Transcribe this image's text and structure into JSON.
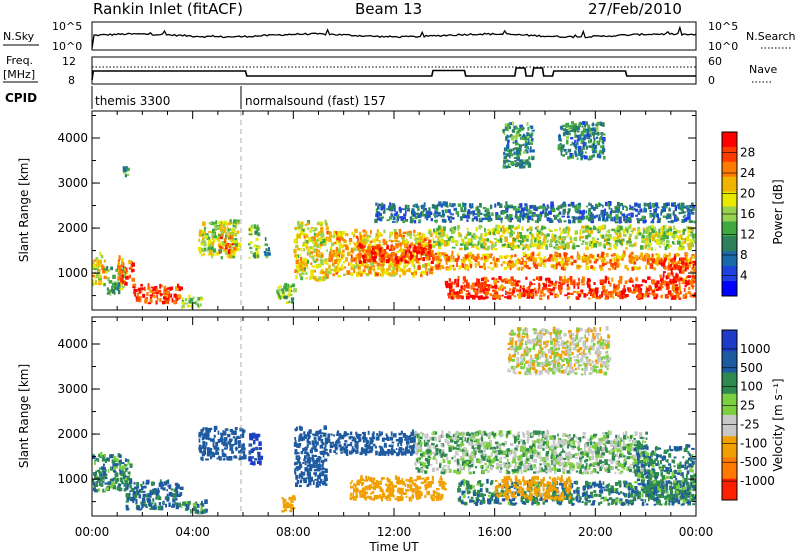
{
  "header": {
    "station": "Rankin Inlet (fitACF)",
    "beam": "Beam 13",
    "date": "27/Feb/2010"
  },
  "noise_panel": {
    "left_label": "N.Sky",
    "right_label": "N.Search",
    "left_ticks": [
      "10^5",
      "10^0"
    ],
    "right_ticks": [
      "10^5",
      "10^0"
    ]
  },
  "freq_panel": {
    "left_label_1": "Freq.",
    "left_label_2": "[MHz]",
    "left_ticks": [
      "12",
      "8"
    ],
    "right_label": "Nave",
    "right_ticks": [
      "60",
      "0"
    ]
  },
  "cpid_panel": {
    "label": "CPID",
    "modes": [
      {
        "name": "themis 3300",
        "start_hour": 0,
        "end_hour": 6
      },
      {
        "name": "normalsound (fast) 157",
        "start_hour": 6,
        "end_hour": 24
      }
    ]
  },
  "axes": {
    "ylabel": "Slant Range [km]",
    "xlabel": "Time UT",
    "y_ticks": [
      "4000",
      "3000",
      "2000",
      "1000"
    ],
    "x_ticks": [
      "00:00",
      "04:00",
      "08:00",
      "12:00",
      "16:00",
      "20:00",
      "00:00"
    ],
    "xlim_hours": [
      0,
      24
    ],
    "ylim_km": [
      180,
      4600
    ]
  },
  "power_colorbar": {
    "label": "Power [dB]",
    "ticks": [
      "28",
      "24",
      "20",
      "16",
      "12",
      "8",
      "4"
    ],
    "colors": [
      "#ff0000",
      "#ff3c00",
      "#ff7a00",
      "#f0b400",
      "#e8e800",
      "#96d250",
      "#40a840",
      "#2e7f5c",
      "#1a6aaa",
      "#2040e0",
      "#0000ff"
    ]
  },
  "velocity_colorbar": {
    "label": "Velocity [m s⁻¹]",
    "ticks": [
      "1000",
      "500",
      "100",
      "25",
      "-25",
      "-100",
      "-500",
      "-1000"
    ],
    "colors": [
      "#1e3cc8",
      "#1e5aa0",
      "#2e8a50",
      "#7cd040",
      "#c8c8c8",
      "#f0a000",
      "#ff7800",
      "#ff2000"
    ]
  },
  "chart_data": {
    "type": "heatmap",
    "title": "Rankin Inlet (fitACF)",
    "panels": [
      {
        "name": "Power",
        "unit": "dB",
        "range": [
          0,
          30
        ],
        "scatter_regions": [
          {
            "t0": 0.0,
            "t1": 0.5,
            "r0": 700,
            "r1": 1400,
            "value": 18
          },
          {
            "t0": 0.5,
            "t1": 1.3,
            "r0": 500,
            "r1": 1100,
            "value": 12
          },
          {
            "t0": 1.0,
            "t1": 1.6,
            "r0": 700,
            "r1": 1300,
            "value": 24
          },
          {
            "t0": 1.6,
            "t1": 3.5,
            "r0": 300,
            "r1": 700,
            "value": 26
          },
          {
            "t0": 3.5,
            "t1": 4.3,
            "r0": 200,
            "r1": 450,
            "value": 14
          },
          {
            "t0": 1.2,
            "t1": 1.4,
            "r0": 3100,
            "r1": 3350,
            "value": 12
          },
          {
            "t0": 4.2,
            "t1": 5.8,
            "r0": 1300,
            "r1": 2100,
            "value": 16
          },
          {
            "t0": 5.0,
            "t1": 5.6,
            "r0": 1400,
            "r1": 1800,
            "value": 24
          },
          {
            "t0": 6.2,
            "t1": 6.6,
            "r0": 1300,
            "r1": 2000,
            "value": 14
          },
          {
            "t0": 6.8,
            "t1": 7.0,
            "r0": 1300,
            "r1": 1800,
            "value": 10
          },
          {
            "t0": 7.3,
            "t1": 8.0,
            "r0": 300,
            "r1": 700,
            "value": 14
          },
          {
            "t0": 8.0,
            "t1": 9.3,
            "r0": 800,
            "r1": 2100,
            "value": 18
          },
          {
            "t0": 9.3,
            "t1": 13.5,
            "r0": 900,
            "r1": 1900,
            "value": 20
          },
          {
            "t0": 10.5,
            "t1": 13.5,
            "r0": 1200,
            "r1": 1600,
            "value": 27
          },
          {
            "t0": 13.5,
            "t1": 24.0,
            "r0": 1500,
            "r1": 2000,
            "value": 16
          },
          {
            "t0": 13.5,
            "t1": 24.0,
            "r0": 1050,
            "r1": 1400,
            "value": 22
          },
          {
            "t0": 14.0,
            "t1": 24.0,
            "r0": 400,
            "r1": 850,
            "value": 26
          },
          {
            "t0": 22.5,
            "t1": 24.0,
            "r0": 700,
            "r1": 1300,
            "value": 27
          },
          {
            "t0": 16.3,
            "t1": 17.5,
            "r0": 3300,
            "r1": 4300,
            "value": 10
          },
          {
            "t0": 18.5,
            "t1": 20.3,
            "r0": 3500,
            "r1": 4300,
            "value": 9
          },
          {
            "t0": 11.2,
            "t1": 24.0,
            "r0": 2100,
            "r1": 2500,
            "value": 8
          }
        ]
      },
      {
        "name": "Velocity",
        "unit": "m s-1",
        "range": [
          -1000,
          1000
        ],
        "scatter_regions": [
          {
            "t0": 0.0,
            "t1": 1.5,
            "r0": 700,
            "r1": 1500,
            "value": 60
          },
          {
            "t0": 1.3,
            "t1": 3.5,
            "r0": 300,
            "r1": 900,
            "value": 120
          },
          {
            "t0": 3.5,
            "t1": 4.5,
            "r0": 200,
            "r1": 450,
            "value": 80
          },
          {
            "t0": 4.2,
            "t1": 6.0,
            "r0": 1400,
            "r1": 2100,
            "value": 400
          },
          {
            "t0": 6.2,
            "t1": 6.7,
            "r0": 1300,
            "r1": 2000,
            "value": 500
          },
          {
            "t0": 8.0,
            "t1": 9.3,
            "r0": 800,
            "r1": 2100,
            "value": 300
          },
          {
            "t0": 9.3,
            "t1": 12.8,
            "r0": 1500,
            "r1": 2000,
            "value": 400
          },
          {
            "t0": 10.2,
            "t1": 14.0,
            "r0": 500,
            "r1": 1000,
            "value": -400
          },
          {
            "t0": 12.8,
            "t1": 22.0,
            "r0": 1100,
            "r1": 2000,
            "value": 0
          },
          {
            "t0": 14.5,
            "t1": 24.0,
            "r0": 400,
            "r1": 900,
            "value": 90
          },
          {
            "t0": 16.0,
            "t1": 19.0,
            "r0": 500,
            "r1": 1000,
            "value": -300
          },
          {
            "t0": 21.5,
            "t1": 24.0,
            "r0": 500,
            "r1": 1700,
            "value": 80
          },
          {
            "t0": 7.5,
            "t1": 8.0,
            "r0": 250,
            "r1": 600,
            "value": -300
          },
          {
            "t0": 16.5,
            "t1": 20.5,
            "r0": 3300,
            "r1": 4300,
            "value": -60
          }
        ]
      }
    ],
    "x_ticks": [
      "00:00",
      "04:00",
      "08:00",
      "12:00",
      "16:00",
      "20:00",
      "00:00"
    ],
    "y_ticks": [
      "4000",
      "3000",
      "2000",
      "1000"
    ],
    "xlabel": "Time UT",
    "ylabel": "Slant Range [km]"
  }
}
